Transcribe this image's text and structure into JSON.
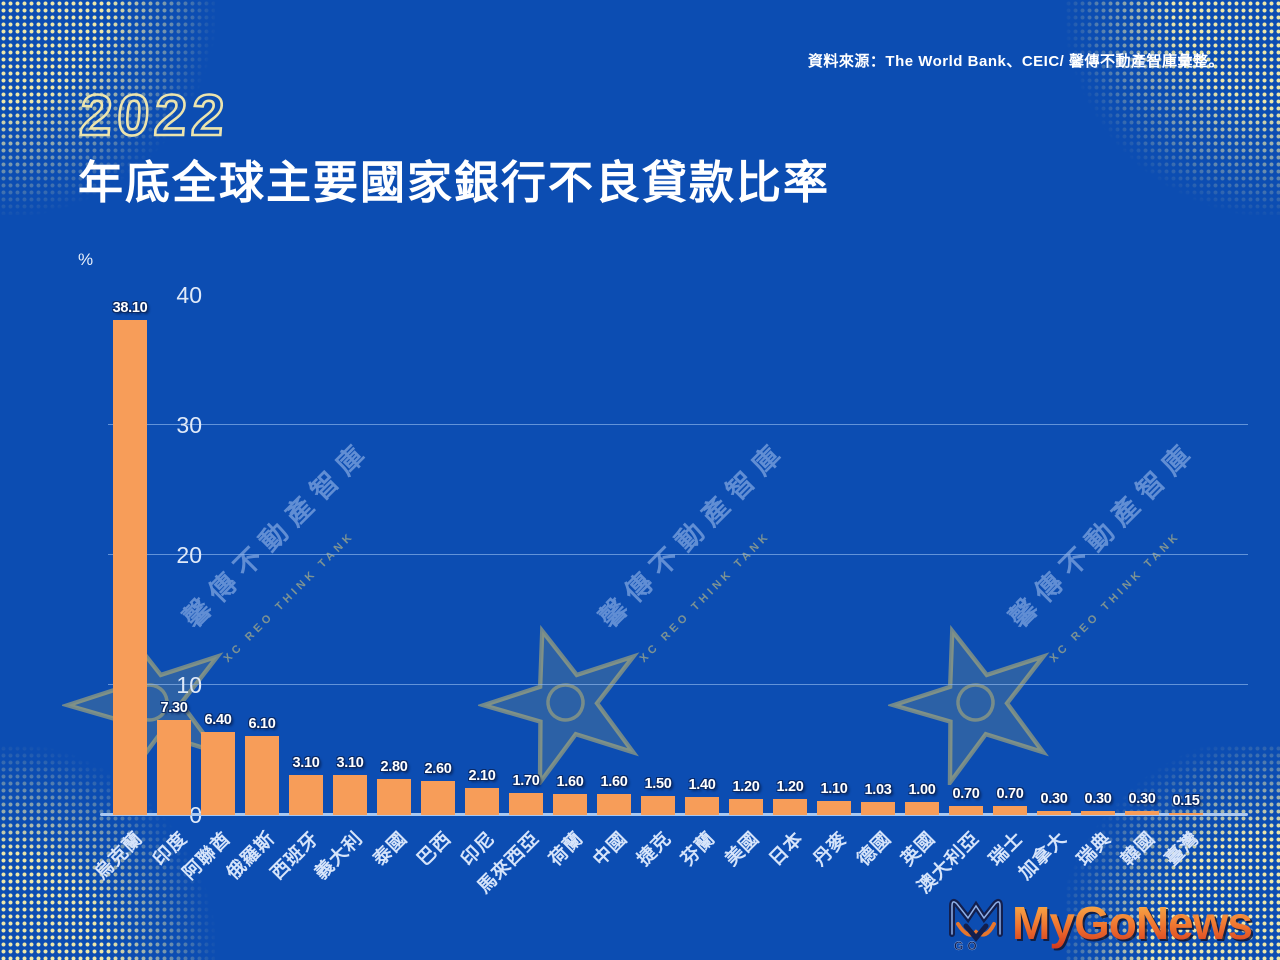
{
  "source": {
    "note": "資料來源：The World Bank、CEIC/ 馨傳不動產智庫彙整。"
  },
  "header": {
    "year": "2022",
    "title": "年底全球主要國家銀行不良貸款比率"
  },
  "chart_data": {
    "type": "bar",
    "title": "2022年底全球主要國家銀行不良貸款比率",
    "unit_label": "%",
    "categories": [
      "烏克蘭",
      "印度",
      "阿聯酋",
      "俄羅斯",
      "西班牙",
      "義大利",
      "泰國",
      "巴西",
      "印尼",
      "馬來西亞",
      "荷蘭",
      "中國",
      "捷克",
      "芬蘭",
      "美國",
      "日本",
      "丹麥",
      "德國",
      "英國",
      "澳大利亞",
      "瑞士",
      "加拿大",
      "瑞典",
      "韓國",
      "臺灣"
    ],
    "values": [
      38.1,
      7.3,
      6.4,
      6.1,
      3.1,
      3.1,
      2.8,
      2.6,
      2.1,
      1.7,
      1.6,
      1.6,
      1.5,
      1.4,
      1.2,
      1.2,
      1.1,
      1.03,
      1.0,
      0.7,
      0.7,
      0.3,
      0.3,
      0.3,
      0.15
    ],
    "value_labels": [
      "38.10",
      "7.30",
      "6.40",
      "6.10",
      "3.10",
      "3.10",
      "2.80",
      "2.60",
      "2.10",
      "1.70",
      "1.60",
      "1.60",
      "1.50",
      "1.40",
      "1.20",
      "1.20",
      "1.10",
      "1.03",
      "1.00",
      "0.70",
      "0.70",
      "0.30",
      "0.30",
      "0.30",
      "0.15"
    ],
    "y_ticks": [
      0,
      10,
      20,
      30,
      40
    ],
    "ylim": [
      0,
      40
    ],
    "grid": true,
    "legend": "none",
    "bar_color": "#f79d59",
    "background_color": "#0c4db2"
  },
  "watermark": {
    "cjk": "馨傳不動產智庫",
    "latin": "XC REO THINK TANK"
  },
  "branding": {
    "logo_text": "MyGoNews",
    "logo_mark_text": "GO"
  }
}
